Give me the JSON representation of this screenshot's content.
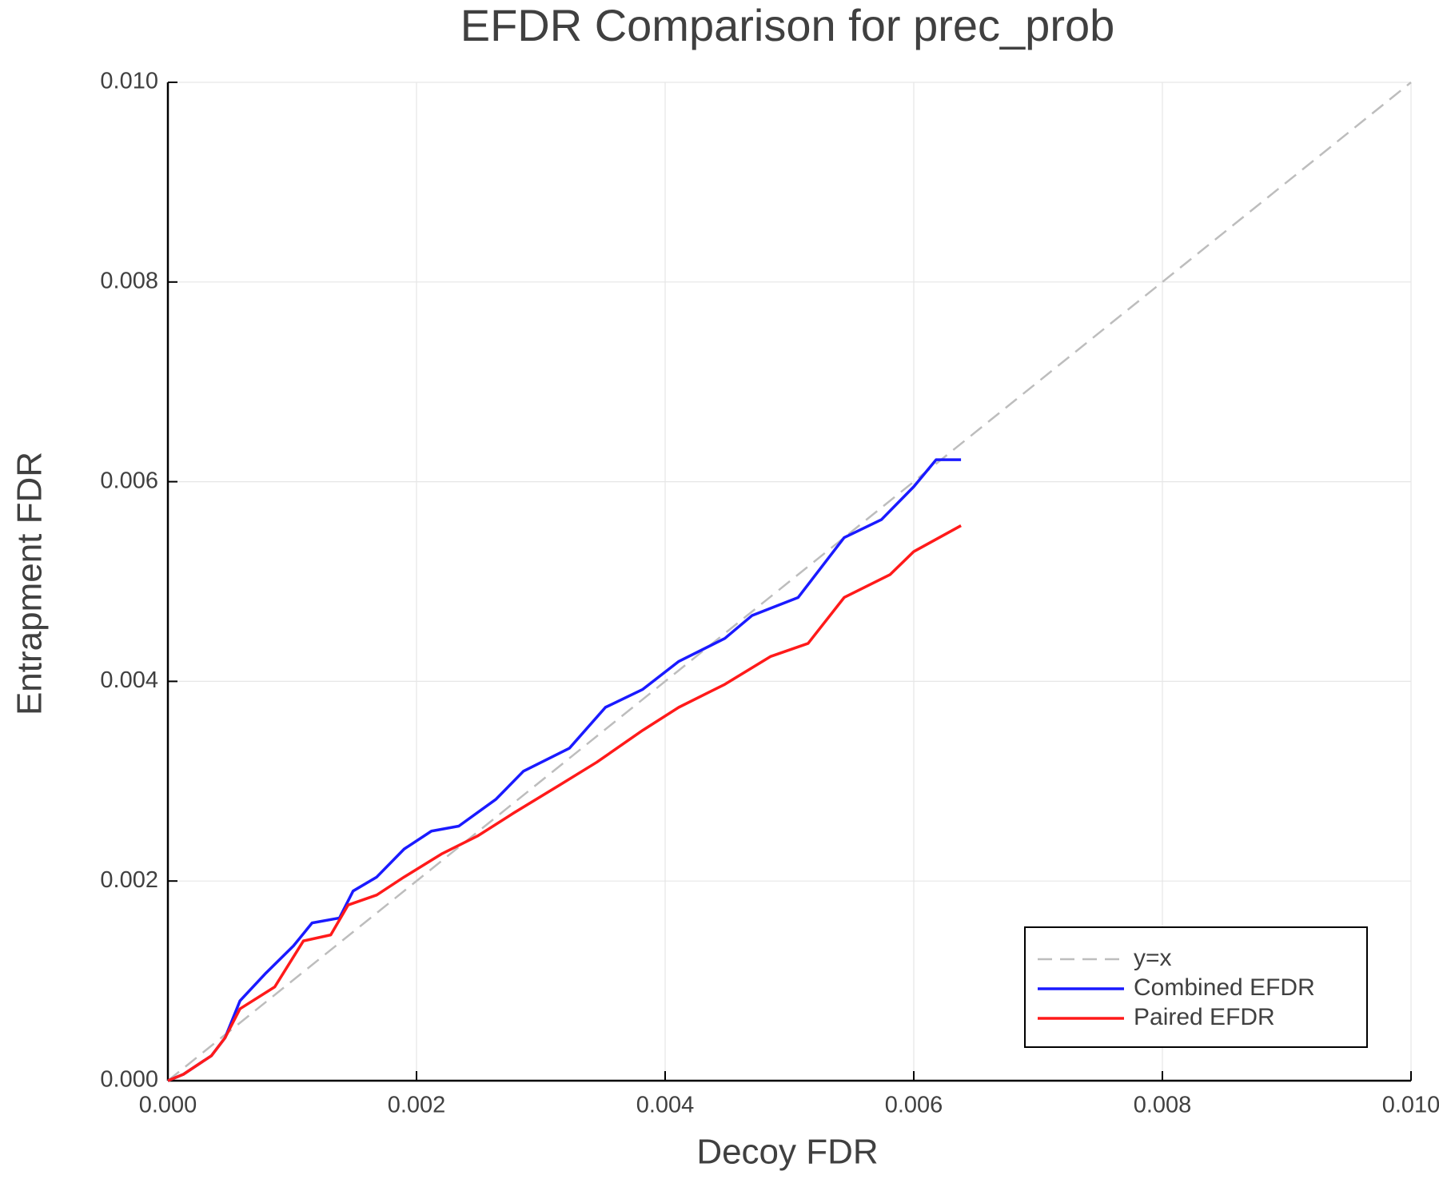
{
  "chart_data": {
    "type": "line",
    "title": "EFDR Comparison for prec_prob",
    "x_label": "Decoy FDR",
    "y_label": "Entrapment FDR",
    "xlim": [
      0,
      0.01
    ],
    "ylim": [
      0,
      0.01
    ],
    "xticks": [
      {
        "value": 0,
        "label": "0.000"
      },
      {
        "value": 0.002,
        "label": "0.002"
      },
      {
        "value": 0.004,
        "label": "0.004"
      },
      {
        "value": 0.006,
        "label": "0.006"
      },
      {
        "value": 0.008,
        "label": "0.008"
      },
      {
        "value": 0.01,
        "label": "0.010"
      }
    ],
    "yticks": [
      {
        "value": 0,
        "label": "0.000"
      },
      {
        "value": 0.002,
        "label": "0.002"
      },
      {
        "value": 0.004,
        "label": "0.004"
      },
      {
        "value": 0.006,
        "label": "0.006"
      },
      {
        "value": 0.008,
        "label": "0.008"
      },
      {
        "value": 0.01,
        "label": "0.010"
      }
    ],
    "grid": true,
    "legend": "lower right",
    "series": [
      {
        "name": "y=x",
        "color": "#bdbdbd",
        "dash": true,
        "x": [
          0,
          0.01
        ],
        "values": [
          0,
          0.01
        ]
      },
      {
        "name": "Combined EFDR",
        "color": "#1a1aff",
        "x": [
          0,
          0.000125,
          0.00035,
          0.00046,
          0.00058,
          0.00079,
          0.00101,
          0.00116,
          0.00138,
          0.00149,
          0.00168,
          0.0019,
          0.00212,
          0.00234,
          0.00264,
          0.00286,
          0.00323,
          0.00352,
          0.00382,
          0.00411,
          0.00448,
          0.0047,
          0.00507,
          0.00544,
          0.00574,
          0.006,
          0.00618,
          0.00638
        ],
        "values": [
          0,
          6.4e-05,
          0.00025,
          0.00043,
          0.0008,
          0.00108,
          0.00135,
          0.00158,
          0.00163,
          0.0019,
          0.00204,
          0.00232,
          0.0025,
          0.00255,
          0.00282,
          0.0031,
          0.00333,
          0.00374,
          0.00392,
          0.0042,
          0.00443,
          0.00466,
          0.00484,
          0.00544,
          0.00562,
          0.00595,
          0.00622,
          0.00622
        ]
      },
      {
        "name": "Paired EFDR",
        "color": "#ff1a1a",
        "x": [
          0,
          0.000125,
          0.00035,
          0.00046,
          0.00058,
          0.00086,
          0.00109,
          0.00131,
          0.00145,
          0.00168,
          0.0019,
          0.0022,
          0.00249,
          0.00278,
          0.00315,
          0.00345,
          0.00382,
          0.00411,
          0.00448,
          0.00485,
          0.00515,
          0.00544,
          0.00581,
          0.006,
          0.00638
        ],
        "values": [
          0,
          6.4e-05,
          0.00025,
          0.00043,
          0.00072,
          0.00094,
          0.0014,
          0.00146,
          0.00176,
          0.00186,
          0.00204,
          0.00227,
          0.00245,
          0.00268,
          0.00296,
          0.00319,
          0.00351,
          0.00374,
          0.00397,
          0.00425,
          0.00438,
          0.00484,
          0.00507,
          0.0053,
          0.00556
        ]
      }
    ]
  }
}
